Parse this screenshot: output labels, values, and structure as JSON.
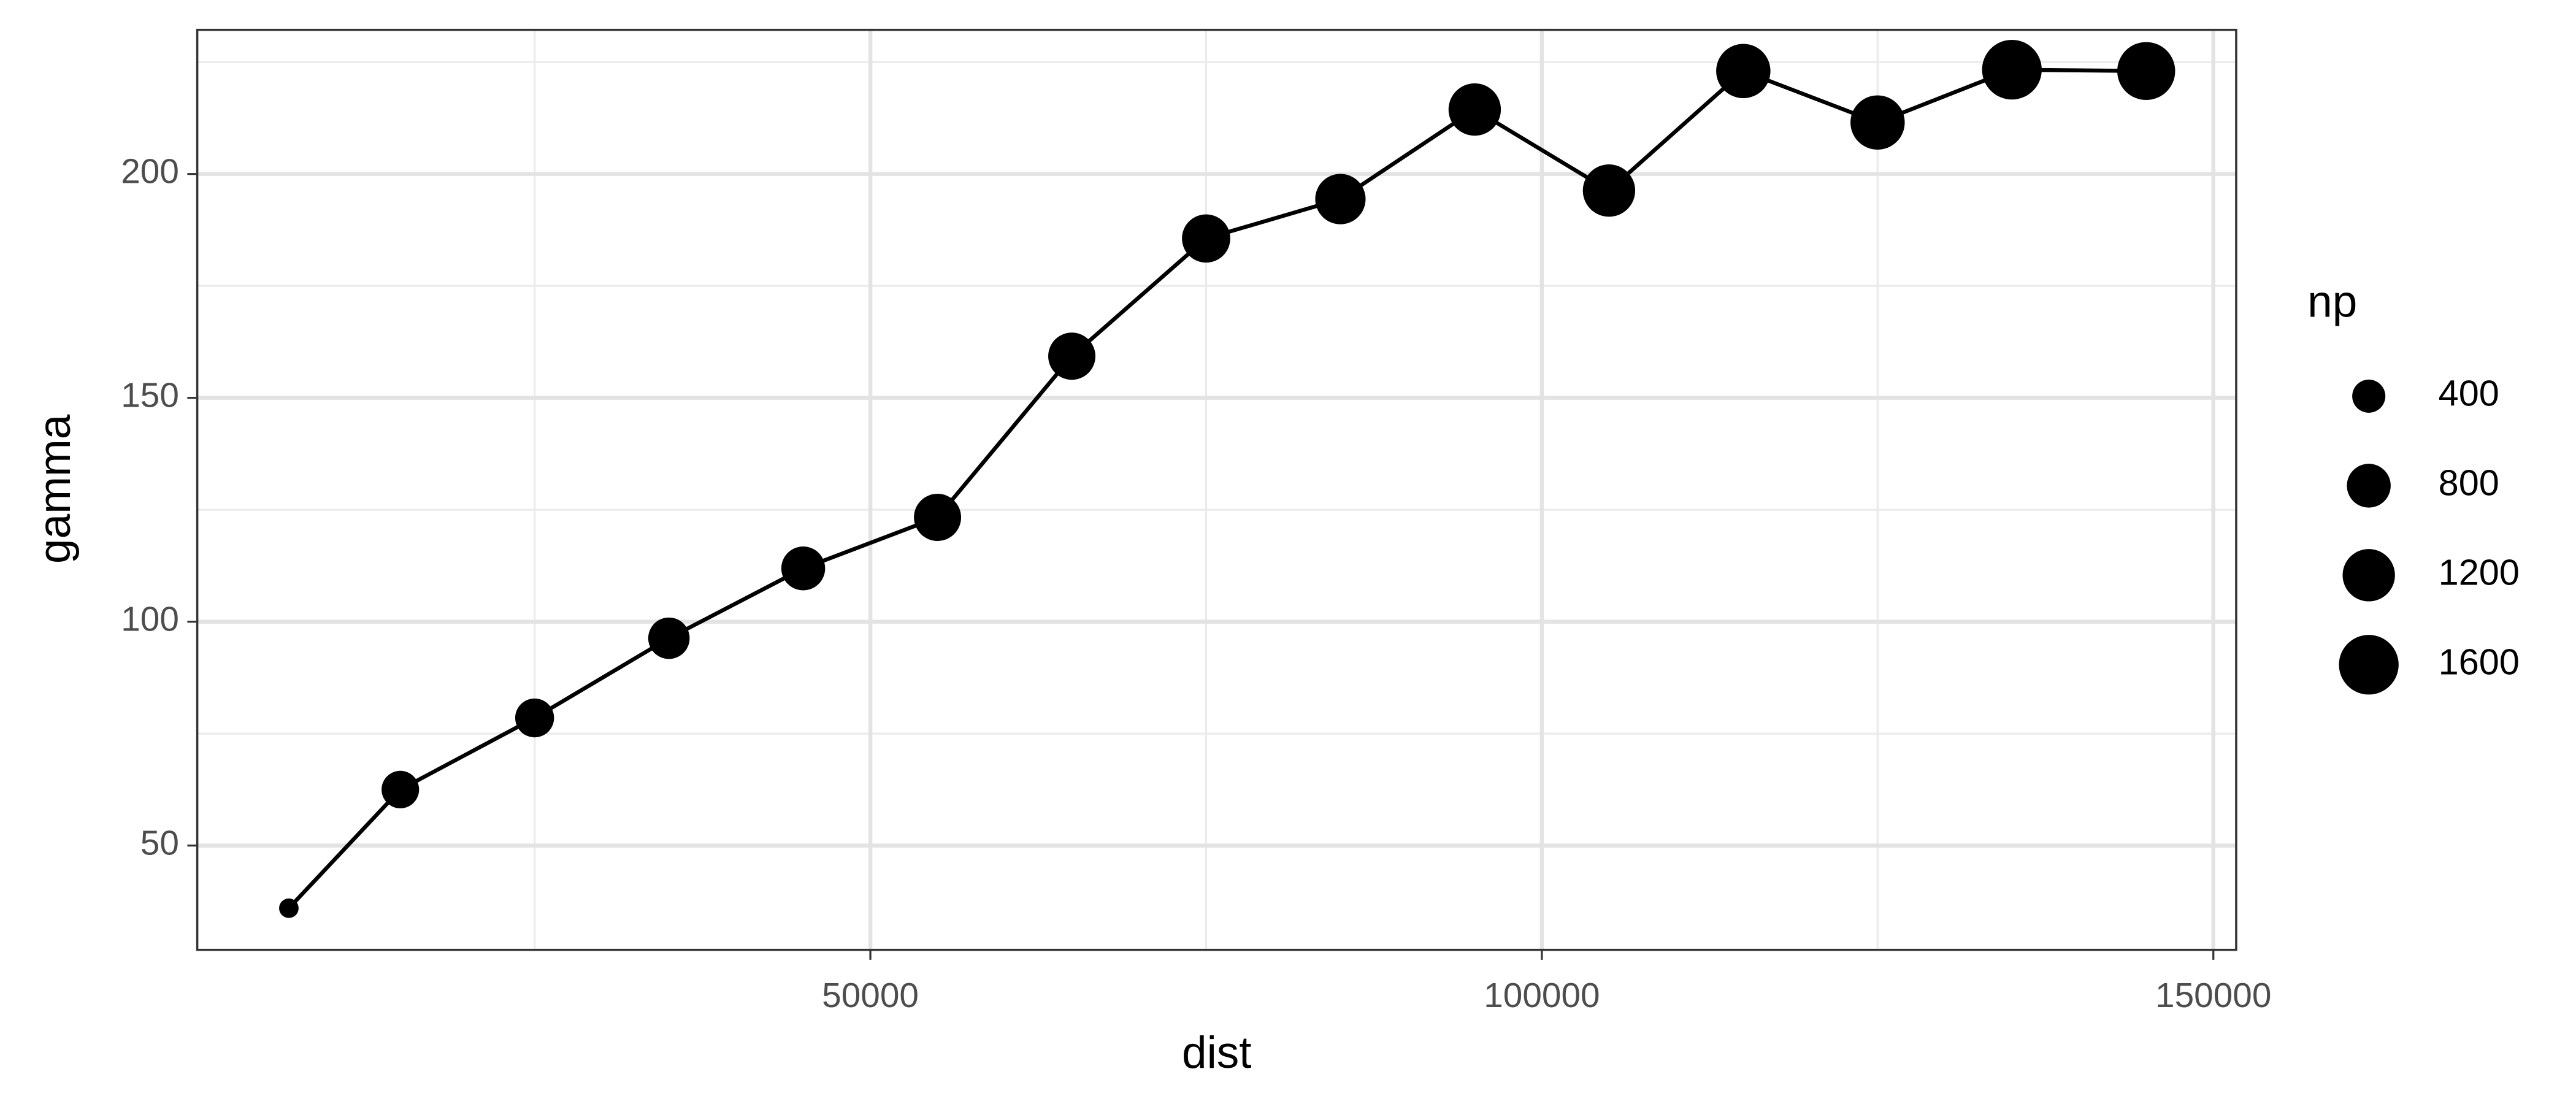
{
  "chart_data": {
    "type": "scatter",
    "connect": true,
    "color": "#000000",
    "x_label": "dist",
    "y_label": "gamma",
    "size_title": "np",
    "x": [
      6700,
      15000,
      25000,
      35000,
      45000,
      55000,
      65000,
      75000,
      85000,
      95000,
      105000,
      115000,
      125000,
      135000,
      145000
    ],
    "y": [
      36,
      62.5,
      78.5,
      96.3,
      111.9,
      123.3,
      159.3,
      185.6,
      194.4,
      214.4,
      196.3,
      223,
      211.5,
      223.3,
      223
    ],
    "np": [
      50,
      550,
      600,
      700,
      800,
      950,
      950,
      1000,
      1100,
      1200,
      1200,
      1300,
      1300,
      1600,
      1500
    ],
    "size_ticks": [
      400,
      800,
      1200,
      1600
    ],
    "xlim": [
      -120,
      151700
    ],
    "xticks": [
      50000,
      100000,
      150000
    ],
    "xminor": [
      25000,
      75000,
      125000
    ],
    "ylim": [
      26.7,
      232.2
    ],
    "yticks": [
      50,
      100,
      150,
      200
    ],
    "yminor": [
      75,
      125,
      175,
      225
    ],
    "grid": true
  }
}
